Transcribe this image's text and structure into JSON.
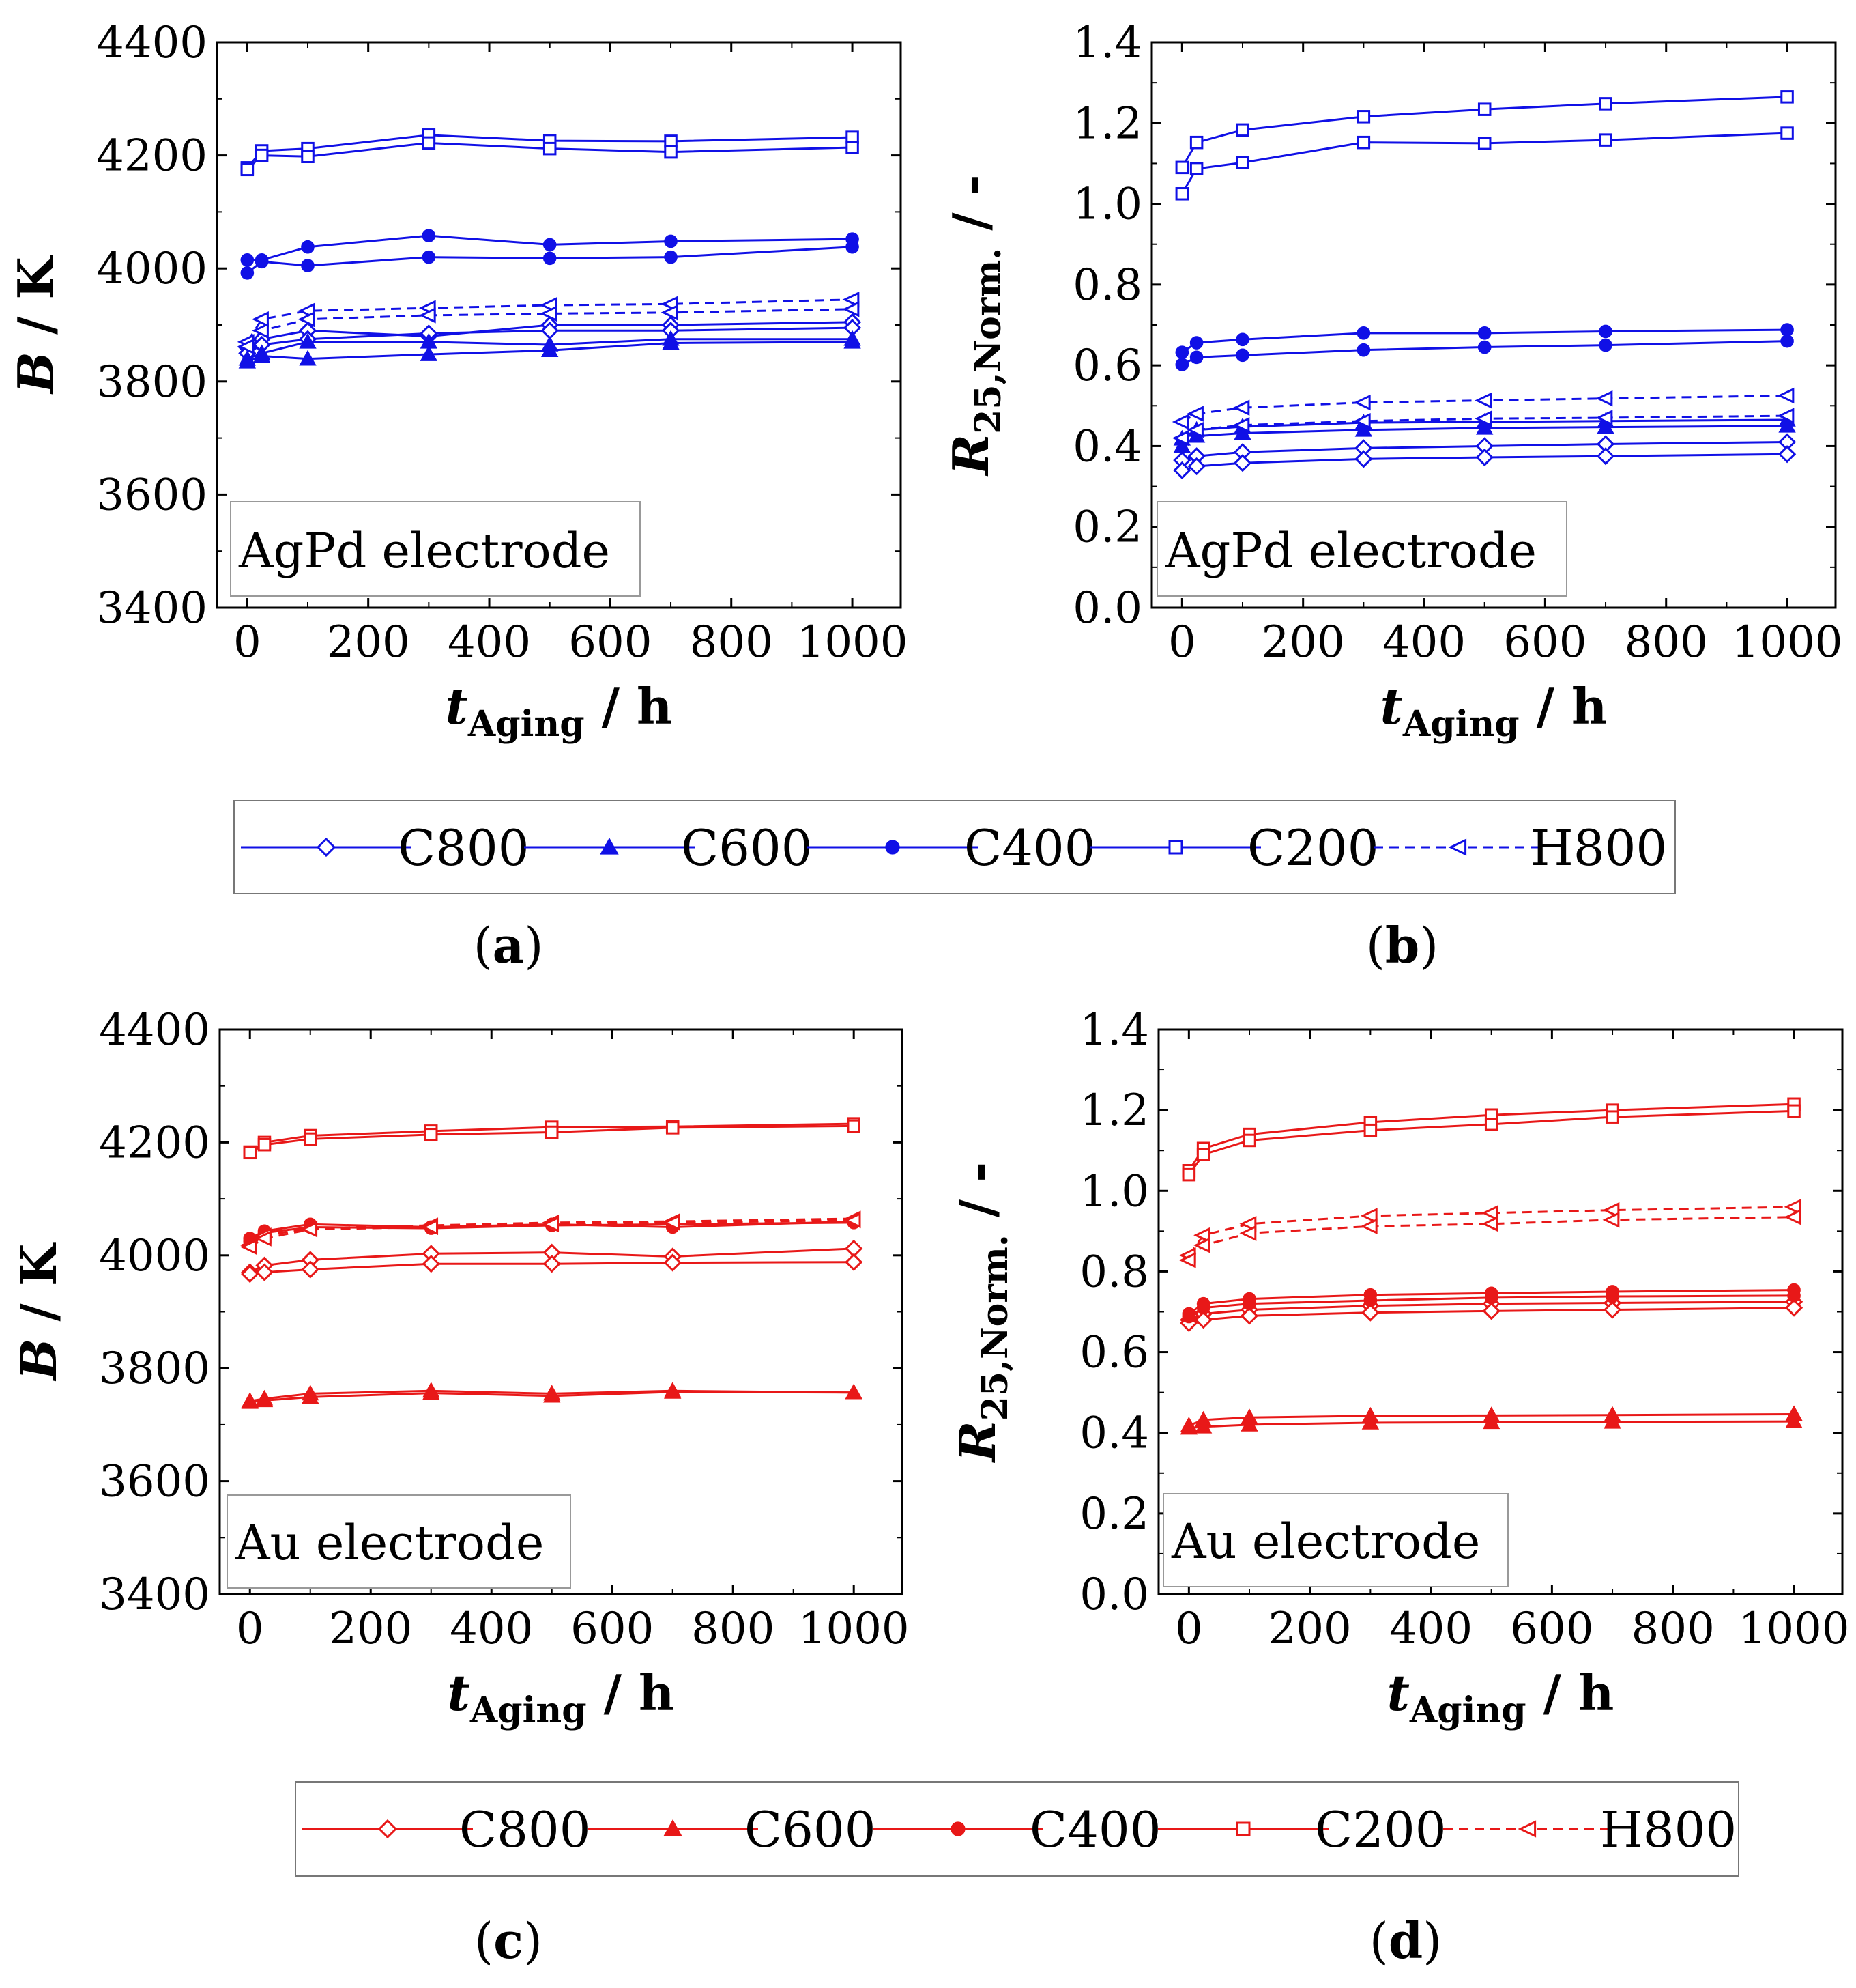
{
  "colors": {
    "blue": "#1010e6",
    "red": "#e81818",
    "black": "#000000"
  },
  "legends": {
    "blue": {
      "color": "#1010e6",
      "entries": [
        {
          "label": "C800",
          "marker": "diamond-open",
          "dash": false
        },
        {
          "label": "C600",
          "marker": "triangle-filled",
          "dash": false
        },
        {
          "label": "C400",
          "marker": "circle-filled",
          "dash": false
        },
        {
          "label": "C200",
          "marker": "square-open",
          "dash": false
        },
        {
          "label": "H800",
          "marker": "tri-left-open",
          "dash": true
        }
      ]
    },
    "red": {
      "color": "#e81818",
      "entries": [
        {
          "label": "C800",
          "marker": "diamond-open",
          "dash": false
        },
        {
          "label": "C600",
          "marker": "triangle-filled",
          "dash": false
        },
        {
          "label": "C400",
          "marker": "circle-filled",
          "dash": false
        },
        {
          "label": "C200",
          "marker": "square-open",
          "dash": false
        },
        {
          "label": "H800",
          "marker": "tri-left-open",
          "dash": true
        }
      ]
    }
  },
  "chart_data": [
    {
      "panel": "a",
      "caption": "a",
      "type": "line",
      "title": "",
      "annotation": "AgPd electrode",
      "xlabel": {
        "main": "t",
        "sub": "Aging",
        "unit": " / h"
      },
      "ylabel": {
        "main": "B",
        "sub": "",
        "unit": " / K"
      },
      "xlim": [
        -50,
        1080
      ],
      "ylim": [
        3400,
        4400
      ],
      "xticks": [
        0,
        200,
        400,
        600,
        800,
        1000
      ],
      "yticks": [
        3400,
        3600,
        3800,
        4000,
        4200,
        4400
      ],
      "ytick_labels": [
        "3400",
        "3600",
        "3800",
        "4000",
        "4200",
        "4400"
      ],
      "x": [
        0,
        24,
        100,
        300,
        500,
        700,
        1000
      ],
      "color": "#1010e6",
      "series": [
        {
          "name": "C800",
          "marker": "diamond-open",
          "dash": false,
          "values": [
            3860,
            3875,
            3890,
            3880,
            3900,
            3900,
            3905
          ]
        },
        {
          "name": "C800",
          "marker": "diamond-open",
          "dash": false,
          "values": [
            3850,
            3865,
            3875,
            3885,
            3890,
            3890,
            3895
          ]
        },
        {
          "name": "C600",
          "marker": "triangle-filled",
          "dash": false,
          "values": [
            3840,
            3850,
            3870,
            3870,
            3865,
            3875,
            3875
          ]
        },
        {
          "name": "C600",
          "marker": "triangle-filled",
          "dash": false,
          "values": [
            3835,
            3845,
            3840,
            3848,
            3855,
            3868,
            3870
          ]
        },
        {
          "name": "C400",
          "marker": "circle-filled",
          "dash": false,
          "values": [
            4015,
            4015,
            4038,
            4058,
            4042,
            4048,
            4052
          ]
        },
        {
          "name": "C400",
          "marker": "circle-filled",
          "dash": false,
          "values": [
            3992,
            4012,
            4005,
            4020,
            4018,
            4020,
            4038
          ]
        },
        {
          "name": "C200",
          "marker": "square-open",
          "dash": false,
          "values": [
            4178,
            4208,
            4212,
            4236,
            4226,
            4225,
            4232
          ]
        },
        {
          "name": "C200",
          "marker": "square-open",
          "dash": false,
          "values": [
            4175,
            4200,
            4198,
            4222,
            4212,
            4206,
            4214
          ]
        },
        {
          "name": "H800",
          "marker": "tri-left-open",
          "dash": true,
          "values": [
            3870,
            3910,
            3925,
            3930,
            3935,
            3937,
            3945
          ]
        },
        {
          "name": "H800",
          "marker": "tri-left-open",
          "dash": true,
          "values": [
            3862,
            3890,
            3910,
            3917,
            3920,
            3922,
            3928
          ]
        }
      ]
    },
    {
      "panel": "b",
      "caption": "b",
      "type": "line",
      "title": "",
      "annotation": "AgPd electrode",
      "xlabel": {
        "main": "t",
        "sub": "Aging",
        "unit": " / h"
      },
      "ylabel": {
        "main": "R",
        "sub": "25,Norm.",
        "unit": " / -"
      },
      "xlim": [
        -50,
        1080
      ],
      "ylim": [
        0.0,
        1.4
      ],
      "xticks": [
        0,
        200,
        400,
        600,
        800,
        1000
      ],
      "yticks": [
        0,
        0.2,
        0.4,
        0.6,
        0.8,
        1.0,
        1.2,
        1.4
      ],
      "ytick_labels": [
        "0.0",
        "0.2",
        "0.4",
        "0.6",
        "0.8",
        "1.0",
        "1.2",
        "1.4"
      ],
      "x": [
        0,
        24,
        100,
        300,
        500,
        700,
        1000
      ],
      "color": "#1010e6",
      "series": [
        {
          "name": "C800",
          "marker": "diamond-open",
          "dash": false,
          "values": [
            0.365,
            0.375,
            0.385,
            0.395,
            0.4,
            0.405,
            0.41
          ]
        },
        {
          "name": "C800",
          "marker": "diamond-open",
          "dash": false,
          "values": [
            0.34,
            0.35,
            0.358,
            0.368,
            0.372,
            0.375,
            0.38
          ]
        },
        {
          "name": "C600",
          "marker": "triangle-filled",
          "dash": false,
          "values": [
            0.418,
            0.44,
            0.448,
            0.458,
            0.46,
            0.462,
            0.465
          ]
        },
        {
          "name": "C600",
          "marker": "triangle-filled",
          "dash": false,
          "values": [
            0.4,
            0.425,
            0.432,
            0.44,
            0.445,
            0.447,
            0.45
          ]
        },
        {
          "name": "C400",
          "marker": "circle-filled",
          "dash": false,
          "values": [
            0.632,
            0.656,
            0.664,
            0.68,
            0.68,
            0.684,
            0.688
          ]
        },
        {
          "name": "C400",
          "marker": "circle-filled",
          "dash": false,
          "values": [
            0.602,
            0.62,
            0.625,
            0.638,
            0.645,
            0.65,
            0.66
          ]
        },
        {
          "name": "C200",
          "marker": "square-open",
          "dash": false,
          "values": [
            1.09,
            1.152,
            1.183,
            1.216,
            1.234,
            1.248,
            1.265
          ]
        },
        {
          "name": "C200",
          "marker": "square-open",
          "dash": false,
          "values": [
            1.025,
            1.087,
            1.102,
            1.152,
            1.15,
            1.158,
            1.175
          ]
        },
        {
          "name": "H800",
          "marker": "tri-left-open",
          "dash": true,
          "values": [
            0.46,
            0.48,
            0.495,
            0.508,
            0.513,
            0.518,
            0.525
          ]
        },
        {
          "name": "H800",
          "marker": "tri-left-open",
          "dash": true,
          "values": [
            0.42,
            0.44,
            0.452,
            0.462,
            0.468,
            0.47,
            0.475
          ]
        }
      ]
    },
    {
      "panel": "c",
      "caption": "c",
      "type": "line",
      "title": "",
      "annotation": "Au electrode",
      "xlabel": {
        "main": "t",
        "sub": "Aging",
        "unit": " / h"
      },
      "ylabel": {
        "main": "B",
        "sub": "",
        "unit": " / K"
      },
      "xlim": [
        -50,
        1080
      ],
      "ylim": [
        3400,
        4400
      ],
      "xticks": [
        0,
        200,
        400,
        600,
        800,
        1000
      ],
      "yticks": [
        3400,
        3600,
        3800,
        4000,
        4200,
        4400
      ],
      "ytick_labels": [
        "3400",
        "3600",
        "3800",
        "4000",
        "4200",
        "4400"
      ],
      "x": [
        0,
        24,
        100,
        300,
        500,
        700,
        1000
      ],
      "color": "#e81818",
      "series": [
        {
          "name": "C800",
          "marker": "diamond-open",
          "dash": false,
          "values": [
            3970,
            3982,
            3992,
            4003,
            4005,
            3998,
            4012
          ]
        },
        {
          "name": "C800",
          "marker": "diamond-open",
          "dash": false,
          "values": [
            3967,
            3970,
            3975,
            3985,
            3985,
            3987,
            3988
          ]
        },
        {
          "name": "C600",
          "marker": "triangle-filled",
          "dash": false,
          "values": [
            3742,
            3746,
            3755,
            3760,
            3755,
            3760,
            3757
          ]
        },
        {
          "name": "C600",
          "marker": "triangle-filled",
          "dash": false,
          "values": [
            3740,
            3743,
            3749,
            3756,
            3751,
            3758,
            3757
          ]
        },
        {
          "name": "C400",
          "marker": "circle-filled",
          "dash": false,
          "values": [
            4030,
            4043,
            4055,
            4050,
            4055,
            4050,
            4060
          ]
        },
        {
          "name": "C400",
          "marker": "circle-filled",
          "dash": false,
          "values": [
            4025,
            4040,
            4050,
            4048,
            4053,
            4055,
            4058
          ]
        },
        {
          "name": "C200",
          "marker": "square-open",
          "dash": false,
          "values": [
            4183,
            4200,
            4212,
            4220,
            4227,
            4228,
            4233
          ]
        },
        {
          "name": "C200",
          "marker": "square-open",
          "dash": false,
          "values": [
            4182,
            4196,
            4206,
            4214,
            4218,
            4226,
            4229
          ]
        },
        {
          "name": "H800",
          "marker": "tri-left-open",
          "dash": true,
          "values": [
            4018,
            4035,
            4048,
            4053,
            4058,
            4060,
            4065
          ]
        },
        {
          "name": "H800",
          "marker": "tri-left-open",
          "dash": true,
          "values": [
            4015,
            4030,
            4046,
            4050,
            4055,
            4058,
            4062
          ]
        }
      ]
    },
    {
      "panel": "d",
      "caption": "d",
      "type": "line",
      "title": "",
      "annotation": "Au electrode",
      "xlabel": {
        "main": "t",
        "sub": "Aging",
        "unit": " / h"
      },
      "ylabel": {
        "main": "R",
        "sub": "25,Norm.",
        "unit": " / -"
      },
      "xlim": [
        -50,
        1080
      ],
      "ylim": [
        0.0,
        1.4
      ],
      "xticks": [
        0,
        200,
        400,
        600,
        800,
        1000
      ],
      "yticks": [
        0,
        0.2,
        0.4,
        0.6,
        0.8,
        1.0,
        1.2,
        1.4
      ],
      "ytick_labels": [
        "0.0",
        "0.2",
        "0.4",
        "0.6",
        "0.8",
        "1.0",
        "1.2",
        "1.4"
      ],
      "x": [
        0,
        24,
        100,
        300,
        500,
        700,
        1000
      ],
      "color": "#e81818",
      "series": [
        {
          "name": "C800",
          "marker": "diamond-open",
          "dash": false,
          "values": [
            0.68,
            0.695,
            0.705,
            0.715,
            0.72,
            0.722,
            0.725
          ]
        },
        {
          "name": "C800",
          "marker": "diamond-open",
          "dash": false,
          "values": [
            0.672,
            0.68,
            0.69,
            0.698,
            0.702,
            0.705,
            0.71
          ]
        },
        {
          "name": "C600",
          "marker": "triangle-filled",
          "dash": false,
          "values": [
            0.418,
            0.432,
            0.438,
            0.442,
            0.443,
            0.444,
            0.446
          ]
        },
        {
          "name": "C600",
          "marker": "triangle-filled",
          "dash": false,
          "values": [
            0.412,
            0.415,
            0.42,
            0.425,
            0.426,
            0.427,
            0.428
          ]
        },
        {
          "name": "C400",
          "marker": "circle-filled",
          "dash": false,
          "values": [
            0.695,
            0.72,
            0.732,
            0.742,
            0.746,
            0.75,
            0.754
          ]
        },
        {
          "name": "C400",
          "marker": "circle-filled",
          "dash": false,
          "values": [
            0.688,
            0.71,
            0.72,
            0.728,
            0.735,
            0.738,
            0.74
          ]
        },
        {
          "name": "C200",
          "marker": "square-open",
          "dash": false,
          "values": [
            1.05,
            1.105,
            1.14,
            1.17,
            1.188,
            1.2,
            1.215
          ]
        },
        {
          "name": "C200",
          "marker": "square-open",
          "dash": false,
          "values": [
            1.04,
            1.09,
            1.125,
            1.15,
            1.165,
            1.183,
            1.198
          ]
        },
        {
          "name": "H800",
          "marker": "tri-left-open",
          "dash": true,
          "values": [
            0.84,
            0.89,
            0.918,
            0.938,
            0.945,
            0.952,
            0.96
          ]
        },
        {
          "name": "H800",
          "marker": "tri-left-open",
          "dash": true,
          "values": [
            0.828,
            0.865,
            0.895,
            0.912,
            0.918,
            0.928,
            0.935
          ]
        }
      ]
    }
  ]
}
